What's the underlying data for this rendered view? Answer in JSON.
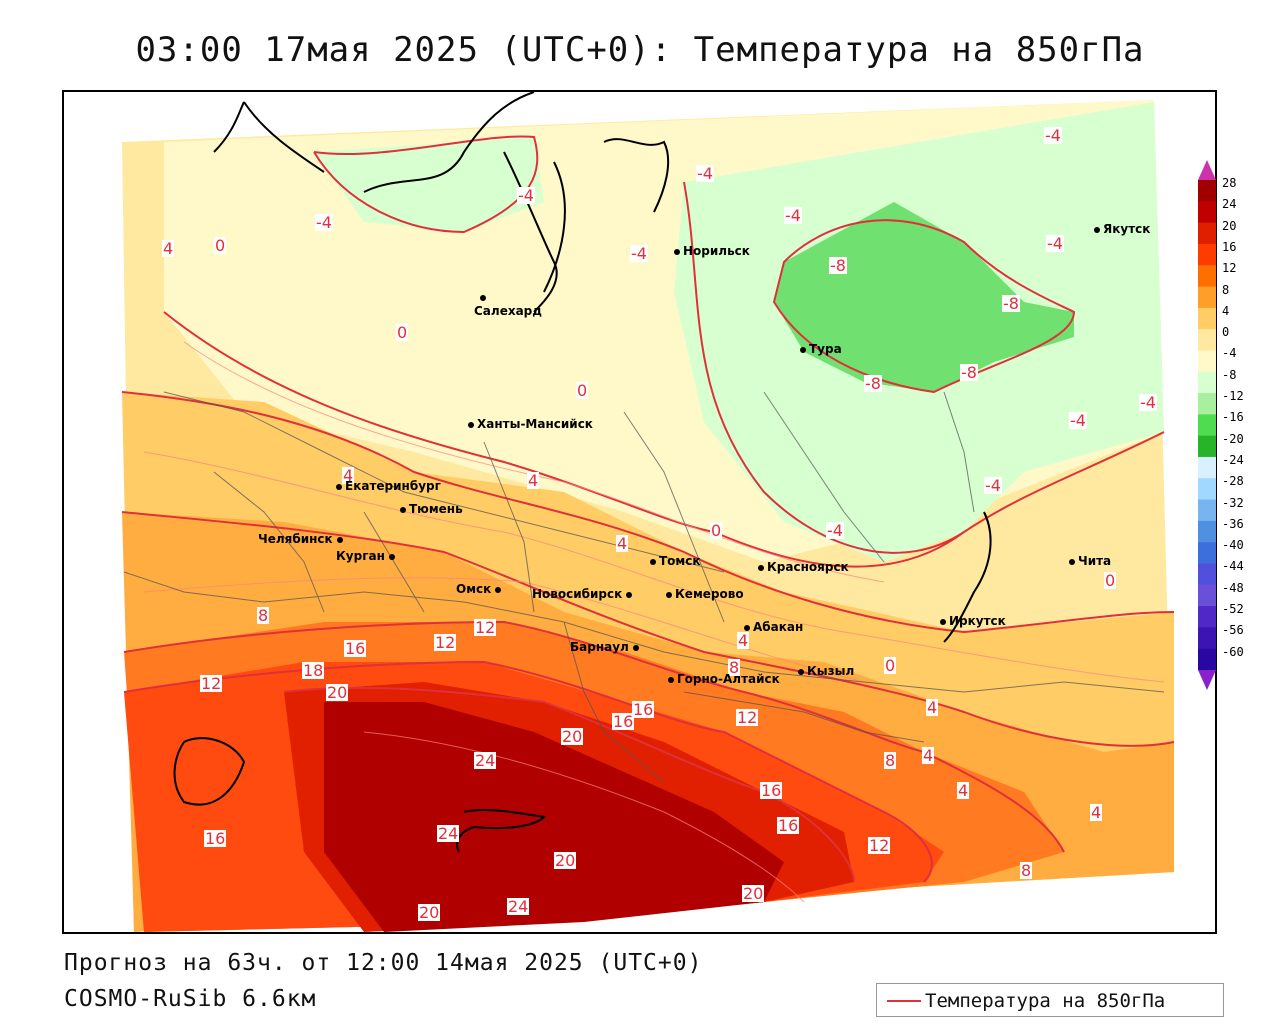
{
  "title": "03:00 17мая 2025 (UTC+0): Температура на 850гПа",
  "footer": {
    "forecast": "Прогноз на 63ч. от 12:00 14мая 2025 (UTC+0)",
    "model": "COSMO-RuSib 6.6км"
  },
  "legend": {
    "label": "Температура на 850гПа",
    "line_color": "#e0303a"
  },
  "colorbar": {
    "labels": [
      "28",
      "24",
      "20",
      "16",
      "12",
      "8",
      "4",
      "0",
      "-4",
      "-8",
      "-12",
      "-16",
      "-20",
      "-24",
      "-28",
      "-32",
      "-36",
      "-40",
      "-44",
      "-48",
      "-52",
      "-56",
      "-60"
    ],
    "colors": [
      "#a00000",
      "#c00000",
      "#e01e00",
      "#ff3c00",
      "#ff6e00",
      "#ff9e28",
      "#ffcc66",
      "#ffe9a0",
      "#fff8c8",
      "#d8ffd0",
      "#a8f0a0",
      "#50dc50",
      "#28b428",
      "#d8f0ff",
      "#a0d8ff",
      "#78b4f0",
      "#5090e0",
      "#3c6edc",
      "#5050dc",
      "#6a50d8",
      "#5028c8",
      "#3c14b4",
      "#2808a0"
    ],
    "arrow_top": "#cc33aa",
    "arrow_bottom": "#8822cc"
  },
  "cities": [
    {
      "name": "Норильск"
    },
    {
      "name": "Якутск"
    },
    {
      "name": "Салехард"
    },
    {
      "name": "Тура"
    },
    {
      "name": "Ханты-Мансийск"
    },
    {
      "name": "Екатеринбург"
    },
    {
      "name": "Тюмень"
    },
    {
      "name": "Челябинск"
    },
    {
      "name": "Курган"
    },
    {
      "name": "Омск"
    },
    {
      "name": "Новосибирск"
    },
    {
      "name": "Томск"
    },
    {
      "name": "Кемерово"
    },
    {
      "name": "Красноярск"
    },
    {
      "name": "Барнаул"
    },
    {
      "name": "Абакан"
    },
    {
      "name": "Горно-Алтайск"
    },
    {
      "name": "Кызыл"
    },
    {
      "name": "Иркутск"
    },
    {
      "name": "Чита"
    }
  ],
  "contour_labels": [
    "-4",
    "-4",
    "-4",
    "-4",
    "-4",
    "-4",
    "-4",
    "-4",
    "-4",
    "-4",
    "-4",
    "-8",
    "-8",
    "-8",
    "-8",
    "0",
    "0",
    "0",
    "0",
    "0",
    "0",
    "4",
    "4",
    "4",
    "4",
    "4",
    "4",
    "4",
    "4",
    "4",
    "8",
    "8",
    "8",
    "8",
    "12",
    "12",
    "12",
    "12",
    "12",
    "16",
    "16",
    "16",
    "16",
    "16",
    "16",
    "18",
    "20",
    "20",
    "20",
    "20",
    "20",
    "24",
    "24",
    "24"
  ]
}
